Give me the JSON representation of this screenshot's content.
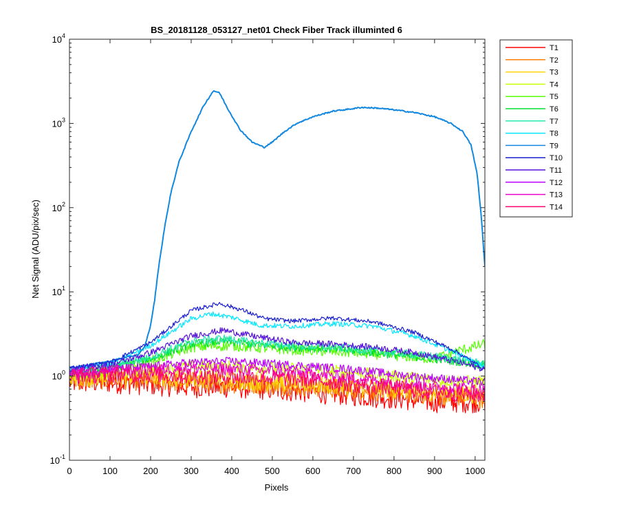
{
  "chart_data": {
    "type": "line",
    "title": "BS_20181128_053127_net01   Check Fiber     Track illuminted 6",
    "xlabel": "Pixels",
    "ylabel": "Net Signal (ADU/pix/sec)",
    "xlim": [
      0,
      1024
    ],
    "ylim": [
      0.1,
      10000
    ],
    "yscale": "log",
    "grid": false,
    "legend_position": "outside-right-top",
    "x_ticks": [
      "0",
      "100",
      "200",
      "300",
      "400",
      "500",
      "600",
      "700",
      "800",
      "900",
      "1000"
    ],
    "y_ticks": [
      {
        "base": "10",
        "exp": "-1"
      },
      {
        "base": "10",
        "exp": "0"
      },
      {
        "base": "10",
        "exp": "1"
      },
      {
        "base": "10",
        "exp": "2"
      },
      {
        "base": "10",
        "exp": "3"
      },
      {
        "base": "10",
        "exp": "4"
      }
    ],
    "series": [
      {
        "name": "T1",
        "color": "#ff0000",
        "noise": 0.55,
        "points": [
          [
            0,
            0.85
          ],
          [
            100,
            0.85
          ],
          [
            200,
            0.8
          ],
          [
            300,
            0.75
          ],
          [
            400,
            0.75
          ],
          [
            500,
            0.7
          ],
          [
            600,
            0.65
          ],
          [
            700,
            0.6
          ],
          [
            800,
            0.55
          ],
          [
            900,
            0.5
          ],
          [
            1024,
            0.5
          ]
        ]
      },
      {
        "name": "T2",
        "color": "#ff7f00",
        "noise": 0.5,
        "points": [
          [
            0,
            0.9
          ],
          [
            100,
            0.92
          ],
          [
            200,
            0.9
          ],
          [
            300,
            0.85
          ],
          [
            400,
            0.82
          ],
          [
            500,
            0.8
          ],
          [
            600,
            0.75
          ],
          [
            700,
            0.7
          ],
          [
            800,
            0.65
          ],
          [
            900,
            0.6
          ],
          [
            1024,
            0.55
          ]
        ]
      },
      {
        "name": "T3",
        "color": "#ffd400",
        "noise": 0.45,
        "points": [
          [
            0,
            0.95
          ],
          [
            100,
            1.0
          ],
          [
            200,
            1.0
          ],
          [
            300,
            0.95
          ],
          [
            400,
            0.9
          ],
          [
            500,
            0.85
          ],
          [
            600,
            0.8
          ],
          [
            700,
            0.75
          ],
          [
            800,
            0.7
          ],
          [
            900,
            0.65
          ],
          [
            1024,
            0.6
          ]
        ]
      },
      {
        "name": "T4",
        "color": "#c8ff00",
        "noise": 0.3,
        "points": [
          [
            0,
            1.0
          ],
          [
            100,
            1.1
          ],
          [
            200,
            1.2
          ],
          [
            300,
            1.3
          ],
          [
            400,
            1.3
          ],
          [
            500,
            1.25
          ],
          [
            600,
            1.2
          ],
          [
            700,
            1.1
          ],
          [
            800,
            1.0
          ],
          [
            900,
            0.9
          ],
          [
            1024,
            0.85
          ]
        ]
      },
      {
        "name": "T5",
        "color": "#55ff00",
        "noise": 0.25,
        "points": [
          [
            0,
            1.05
          ],
          [
            100,
            1.2
          ],
          [
            200,
            1.5
          ],
          [
            300,
            2.2
          ],
          [
            400,
            2.3
          ],
          [
            500,
            2.1
          ],
          [
            600,
            2.0
          ],
          [
            700,
            1.9
          ],
          [
            800,
            1.75
          ],
          [
            900,
            1.6
          ],
          [
            960,
            2.0
          ],
          [
            1024,
            2.4
          ]
        ]
      },
      {
        "name": "T6",
        "color": "#00dd30",
        "noise": 0.2,
        "points": [
          [
            0,
            1.1
          ],
          [
            100,
            1.25
          ],
          [
            200,
            1.6
          ],
          [
            300,
            2.4
          ],
          [
            380,
            2.6
          ],
          [
            450,
            2.4
          ],
          [
            550,
            2.2
          ],
          [
            650,
            2.1
          ],
          [
            750,
            1.9
          ],
          [
            850,
            1.7
          ],
          [
            950,
            1.5
          ],
          [
            1024,
            1.35
          ]
        ]
      },
      {
        "name": "T7",
        "color": "#22e8b0",
        "noise": 0.2,
        "points": [
          [
            0,
            1.15
          ],
          [
            100,
            1.3
          ],
          [
            200,
            1.7
          ],
          [
            300,
            2.6
          ],
          [
            380,
            2.8
          ],
          [
            450,
            2.5
          ],
          [
            550,
            2.3
          ],
          [
            650,
            2.2
          ],
          [
            750,
            2.0
          ],
          [
            850,
            1.8
          ],
          [
            950,
            1.6
          ],
          [
            1024,
            1.4
          ]
        ]
      },
      {
        "name": "T8",
        "color": "#00e8ff",
        "noise": 0.12,
        "points": [
          [
            0,
            1.2
          ],
          [
            100,
            1.4
          ],
          [
            200,
            2.3
          ],
          [
            300,
            4.8
          ],
          [
            350,
            5.5
          ],
          [
            400,
            5.0
          ],
          [
            470,
            4.0
          ],
          [
            550,
            3.9
          ],
          [
            650,
            4.2
          ],
          [
            750,
            3.9
          ],
          [
            850,
            3.0
          ],
          [
            950,
            1.9
          ],
          [
            1024,
            1.3
          ]
        ]
      },
      {
        "name": "T9",
        "color": "#1188e0",
        "noise": 0.03,
        "points": [
          [
            0,
            1.25
          ],
          [
            100,
            1.5
          ],
          [
            170,
            1.8
          ],
          [
            185,
            2.2
          ],
          [
            200,
            4
          ],
          [
            210,
            8
          ],
          [
            220,
            20
          ],
          [
            235,
            60
          ],
          [
            250,
            150
          ],
          [
            270,
            350
          ],
          [
            300,
            800
          ],
          [
            330,
            1600
          ],
          [
            355,
            2450
          ],
          [
            370,
            2300
          ],
          [
            390,
            1500
          ],
          [
            420,
            850
          ],
          [
            450,
            600
          ],
          [
            480,
            520
          ],
          [
            500,
            600
          ],
          [
            530,
            800
          ],
          [
            560,
            1000
          ],
          [
            600,
            1200
          ],
          [
            650,
            1400
          ],
          [
            700,
            1500
          ],
          [
            720,
            1550
          ],
          [
            760,
            1520
          ],
          [
            800,
            1450
          ],
          [
            850,
            1350
          ],
          [
            900,
            1200
          ],
          [
            940,
            1000
          ],
          [
            970,
            800
          ],
          [
            990,
            550
          ],
          [
            1005,
            250
          ],
          [
            1015,
            80
          ],
          [
            1024,
            20
          ]
        ]
      },
      {
        "name": "T10",
        "color": "#1a20d0",
        "noise": 0.1,
        "points": [
          [
            0,
            1.25
          ],
          [
            100,
            1.45
          ],
          [
            200,
            2.5
          ],
          [
            300,
            6.0
          ],
          [
            370,
            7.3
          ],
          [
            430,
            6.0
          ],
          [
            480,
            4.8
          ],
          [
            550,
            4.5
          ],
          [
            650,
            4.9
          ],
          [
            750,
            4.4
          ],
          [
            850,
            3.3
          ],
          [
            950,
            2.0
          ],
          [
            1024,
            1.2
          ]
        ]
      },
      {
        "name": "T11",
        "color": "#5511dd",
        "noise": 0.15,
        "points": [
          [
            0,
            1.2
          ],
          [
            100,
            1.35
          ],
          [
            200,
            1.9
          ],
          [
            300,
            3.0
          ],
          [
            380,
            3.5
          ],
          [
            450,
            3.0
          ],
          [
            550,
            2.5
          ],
          [
            650,
            2.4
          ],
          [
            750,
            2.2
          ],
          [
            850,
            1.9
          ],
          [
            950,
            1.5
          ],
          [
            1024,
            1.2
          ]
        ]
      },
      {
        "name": "T12",
        "color": "#bb00ff",
        "noise": 0.2,
        "points": [
          [
            0,
            1.1
          ],
          [
            100,
            1.2
          ],
          [
            200,
            1.3
          ],
          [
            300,
            1.45
          ],
          [
            400,
            1.5
          ],
          [
            500,
            1.4
          ],
          [
            600,
            1.3
          ],
          [
            700,
            1.2
          ],
          [
            800,
            1.05
          ],
          [
            900,
            0.95
          ],
          [
            1024,
            0.85
          ]
        ]
      },
      {
        "name": "T13",
        "color": "#ee00cc",
        "noise": 0.3,
        "points": [
          [
            0,
            1.05
          ],
          [
            100,
            1.15
          ],
          [
            200,
            1.2
          ],
          [
            300,
            1.25
          ],
          [
            400,
            1.2
          ],
          [
            500,
            1.15
          ],
          [
            600,
            1.05
          ],
          [
            700,
            0.95
          ],
          [
            800,
            0.85
          ],
          [
            900,
            0.75
          ],
          [
            1024,
            0.7
          ]
        ]
      },
      {
        "name": "T14",
        "color": "#ff0070",
        "noise": 0.4,
        "points": [
          [
            0,
            1.0
          ],
          [
            100,
            1.05
          ],
          [
            200,
            1.05
          ],
          [
            300,
            1.0
          ],
          [
            400,
            0.98
          ],
          [
            500,
            0.95
          ],
          [
            600,
            0.9
          ],
          [
            700,
            0.8
          ],
          [
            800,
            0.72
          ],
          [
            900,
            0.65
          ],
          [
            1024,
            0.6
          ]
        ]
      }
    ]
  }
}
